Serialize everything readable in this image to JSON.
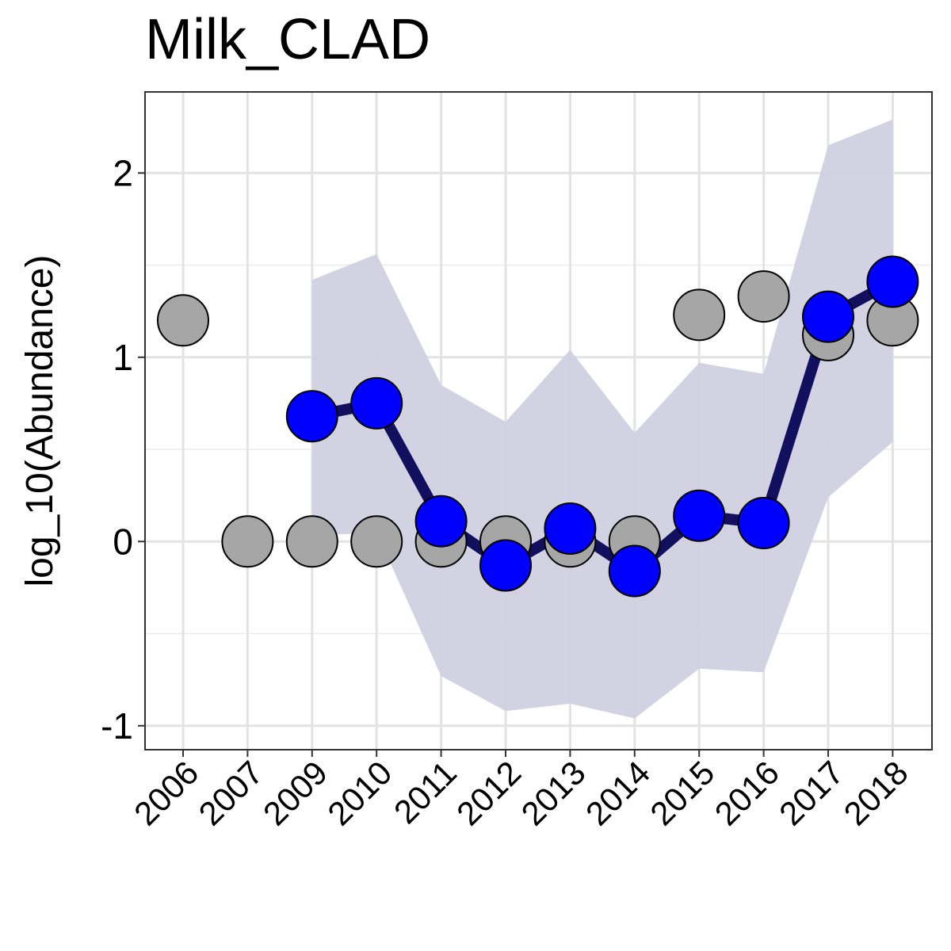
{
  "chart_data": {
    "type": "line",
    "title": "Milk_CLAD",
    "xlabel": "",
    "ylabel": "log_10(Abundance)",
    "ylim": [
      -1.13,
      2.44
    ],
    "yticks": [
      -1,
      0,
      1,
      2
    ],
    "ytick_labels": [
      "-1",
      "0",
      "1",
      "2"
    ],
    "grid": true,
    "categories": [
      "2006",
      "2007",
      "2009",
      "2010",
      "2011",
      "2012",
      "2013",
      "2014",
      "2015",
      "2016",
      "2017",
      "2018"
    ],
    "observed": {
      "color": "#A6A6A6",
      "values": [
        1.2,
        0.0,
        0.0,
        0.0,
        0.0,
        0.0,
        0.0,
        0.0,
        1.23,
        1.33,
        1.12,
        1.2
      ]
    },
    "fitted": {
      "color": "#0000FF",
      "line_color": "#12105E",
      "x": [
        "2009",
        "2010",
        "2011",
        "2012",
        "2013",
        "2014",
        "2015",
        "2016",
        "2017",
        "2018"
      ],
      "values": [
        0.68,
        0.75,
        0.11,
        -0.13,
        0.07,
        -0.16,
        0.14,
        0.1,
        1.22,
        1.41
      ]
    },
    "interval": {
      "color": "#D0D0E1",
      "x": [
        "2009",
        "2010",
        "2011",
        "2012",
        "2013",
        "2014",
        "2015",
        "2016",
        "2017",
        "2018"
      ],
      "lower": [
        0.03,
        0.05,
        -0.73,
        -0.92,
        -0.88,
        -0.96,
        -0.69,
        -0.71,
        0.24,
        0.54
      ],
      "upper": [
        1.42,
        1.56,
        0.85,
        0.65,
        1.04,
        0.59,
        0.97,
        0.91,
        2.15,
        2.29
      ]
    }
  }
}
